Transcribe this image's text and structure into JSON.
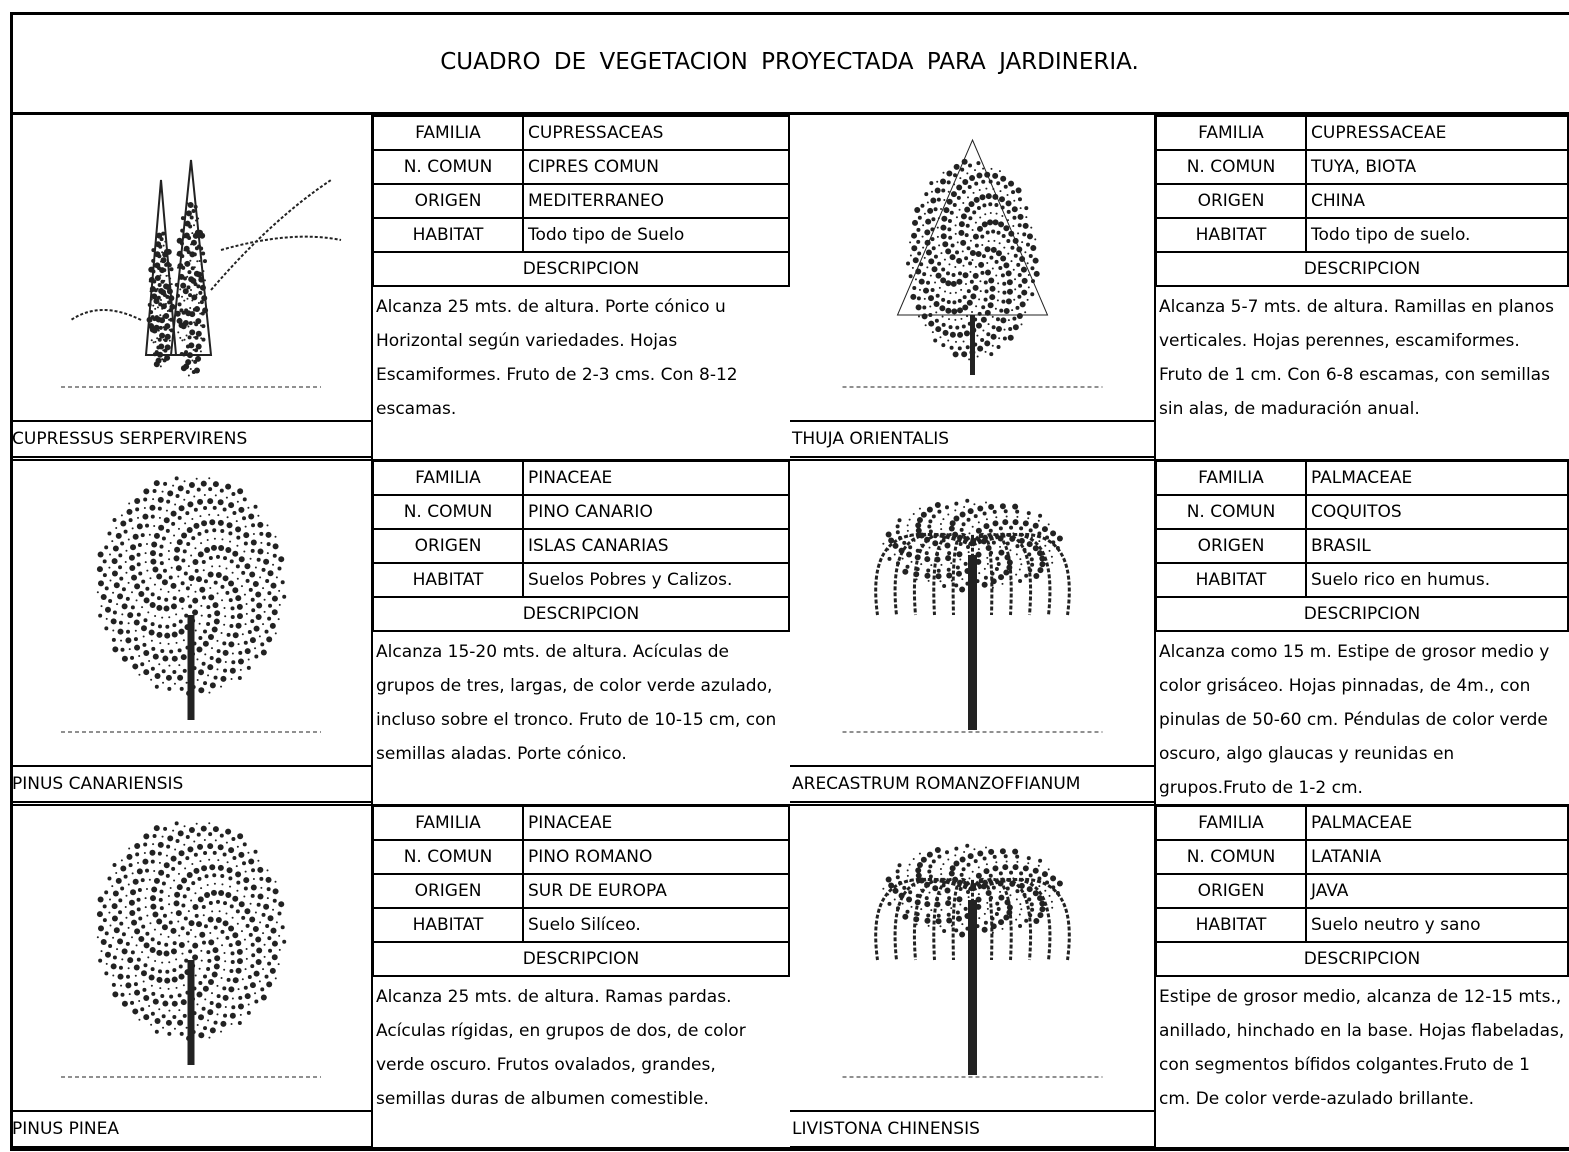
{
  "title": "CUADRO DE VEGETACION PROYECTADA PARA JARDINERIA.",
  "labels": {
    "familia": "FAMILIA",
    "comun": "N. COMUN",
    "origen": "ORIGEN",
    "habitat": "HABITAT",
    "descripcion": "DESCRIPCION"
  },
  "plants": [
    {
      "name": "CUPRESSUS SERPERVIRENS",
      "familia": "CUPRESSACEAS",
      "comun": "CIPRES COMUN",
      "origen": "MEDITERRANEO",
      "habitat": "Todo tipo de Suelo",
      "descripcion": "Alcanza 25 mts. de altura. Porte cónico u Horizontal según variedades. Hojas Escamiformes. Fruto de 2-3 cms. Con 8-12 escamas."
    },
    {
      "name": "THUJA ORIENTALIS",
      "familia": "CUPRESSACEAE",
      "comun": "TUYA, BIOTA",
      "origen": "CHINA",
      "habitat": "Todo tipo de suelo.",
      "descripcion": "Alcanza 5-7 mts. de altura. Ramillas en planos verticales. Hojas perennes, escamiformes. Fruto de 1 cm. Con 6-8 escamas, con semillas sin alas, de maduración anual."
    },
    {
      "name": "PINUS CANARIENSIS",
      "familia": "PINACEAE",
      "comun": "PINO CANARIO",
      "origen": "ISLAS CANARIAS",
      "habitat": "Suelos Pobres y Calizos.",
      "descripcion": "Alcanza 15-20 mts. de altura. Acículas de grupos de tres, largas, de color verde azulado, incluso sobre el tronco. Fruto de 10-15 cm, con semillas aladas. Porte cónico."
    },
    {
      "name": "ARECASTRUM ROMANZOFFIANUM",
      "familia": "PALMACEAE",
      "comun": "COQUITOS",
      "origen": "BRASIL",
      "habitat": "Suelo rico en humus.",
      "descripcion": "Alcanza como 15 m. Estipe de grosor medio y color grisáceo. Hojas pinnadas, de 4m., con pinulas de 50-60 cm. Péndulas de color verde oscuro, algo glaucas y reunidas en grupos.Fruto de 1-2 cm."
    },
    {
      "name": "PINUS PINEA",
      "familia": "PINACEAE",
      "comun": "PINO ROMANO",
      "origen": "SUR DE EUROPA",
      "habitat": "Suelo Silíceo.",
      "descripcion": "Alcanza 25 mts. de altura. Ramas pardas. Acículas rígidas, en grupos de dos, de color verde oscuro. Frutos ovalados, grandes, semillas duras de albumen comestible."
    },
    {
      "name": "LIVISTONA CHINENSIS",
      "familia": "PALMACEAE",
      "comun": "LATANIA",
      "origen": "JAVA",
      "habitat": "Suelo neutro y sano",
      "descripcion": "Estipe de grosor medio, alcanza de 12-15 mts., anillado, hinchado en la base. Hojas flabeladas, con segmentos bífidos colgantes.Fruto de 1 cm. De color verde-azulado brillante."
    }
  ]
}
